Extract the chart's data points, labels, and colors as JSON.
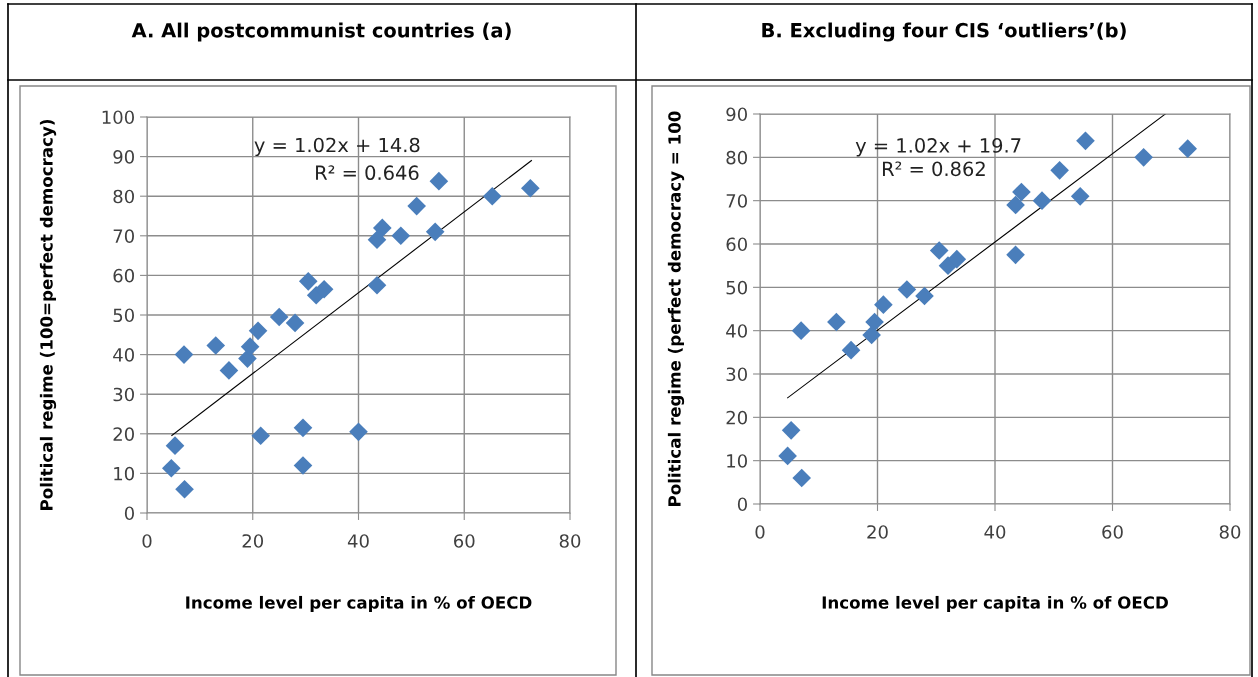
{
  "chart_data": [
    {
      "type": "scatter",
      "title": "A. All postcommunist countries (a)",
      "xlabel": "Income level per capita in % of OECD",
      "ylabel": "Political regime (100=perfect democracy)",
      "xlim": [
        0,
        80
      ],
      "xticks": [
        0,
        20,
        40,
        60,
        80
      ],
      "ylim": [
        0,
        100
      ],
      "yticks": [
        0,
        10,
        20,
        30,
        40,
        50,
        60,
        70,
        80,
        90,
        100
      ],
      "grid": true,
      "annotations": [
        "y = 1.02x + 14.8",
        "R² = 0.646"
      ],
      "series": [
        {
          "marker": "diamond",
          "color": "#4a7ebb",
          "x": [
            4.6,
            5.3,
            7.1,
            7,
            13,
            15.5,
            19,
            19.5,
            21,
            21.5,
            25,
            28,
            29.5,
            29.5,
            30.5,
            32,
            33.5,
            40,
            43.5,
            44.5,
            43.5,
            48,
            51,
            54.5,
            55.2,
            65.3,
            72.5
          ],
          "values": [
            11.3,
            17,
            6,
            40,
            42.3,
            36,
            39,
            42,
            46,
            19.5,
            49.5,
            48,
            21.5,
            12,
            58.5,
            55,
            56.5,
            20.5,
            69,
            72,
            57.5,
            70,
            77.5,
            71,
            83.8,
            80,
            82
          ]
        },
        {
          "type": "line",
          "marker": "none",
          "color": "#000000",
          "x": [
            4.7,
            72.7
          ],
          "values": [
            19.6,
            89
          ]
        }
      ]
    },
    {
      "type": "scatter",
      "title": "B. Excluding four CIS ‘outliers’(b)",
      "xlabel": "Income level per capita in % of OECD",
      "ylabel": "Political regime (perfect democracy = 100",
      "xlim": [
        0,
        80
      ],
      "xticks": [
        0,
        20,
        40,
        60,
        80
      ],
      "ylim": [
        0,
        90
      ],
      "yticks": [
        0,
        10,
        20,
        30,
        40,
        50,
        60,
        70,
        80,
        90
      ],
      "grid": true,
      "annotations": [
        "y = 1.02x + 19.7",
        "R² = 0.862"
      ],
      "series": [
        {
          "marker": "diamond",
          "color": "#4a7ebb",
          "x": [
            4.7,
            5.3,
            7.1,
            7,
            13,
            15.5,
            19,
            19.5,
            21,
            25,
            28,
            30.5,
            32,
            33.5,
            43.5,
            44.5,
            43.5,
            48,
            51,
            54.5,
            55.4,
            65.3,
            72.8
          ],
          "values": [
            11.1,
            17,
            6,
            40,
            42,
            35.5,
            39,
            42,
            46,
            49.5,
            48,
            58.5,
            55,
            56.5,
            69,
            72,
            57.5,
            70,
            77,
            71,
            83.8,
            80,
            82
          ]
        },
        {
          "type": "line",
          "marker": "none",
          "color": "#000000",
          "x": [
            4.7,
            69
          ],
          "values": [
            24.5,
            90
          ]
        }
      ]
    }
  ]
}
